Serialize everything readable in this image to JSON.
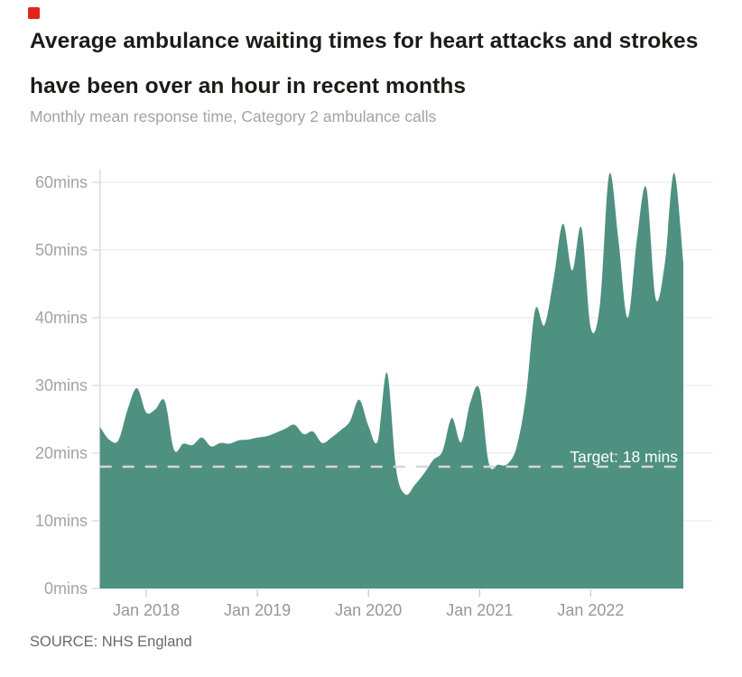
{
  "brand": {
    "logo_color": "#e0241c"
  },
  "header": {
    "title_lines": [
      "Average ambulance waiting times for heart attacks and strokes",
      "have been over an hour in recent months"
    ],
    "subtitle": "Monthly mean response time, Category 2 ambulance calls"
  },
  "footer": {
    "source": "SOURCE: NHS England"
  },
  "chart_data": {
    "type": "area",
    "title": "Average ambulance waiting times for heart attacks and strokes have been over an hour in recent months",
    "subtitle": "Monthly mean response time, Category 2 ambulance calls",
    "source": "SOURCE: NHS England",
    "unit": "minutes",
    "grid": true,
    "legend": "none",
    "area_color": "#4f9180",
    "grid_color": "#ececec",
    "axis_color": "#d9d9d9",
    "target": {
      "value": 18,
      "label": "Target: 18 mins",
      "line_color": "#d6d6d3"
    },
    "ylim": [
      0,
      65
    ],
    "y_tick_values": [
      0,
      10,
      20,
      30,
      40,
      50,
      60
    ],
    "y_tick_labels": [
      "0mins",
      "10mins",
      "20mins",
      "30mins",
      "40mins",
      "50mins",
      "60mins"
    ],
    "x_tick_labels": [
      "Jan 2018",
      "Jan 2019",
      "Jan 2020",
      "Jan 2021",
      "Jan 2022"
    ],
    "series": [
      {
        "name": "Mean Category 2 response time",
        "months": [
          "Aug 2017",
          "Sep 2017",
          "Oct 2017",
          "Nov 2017",
          "Dec 2017",
          "Jan 2018",
          "Feb 2018",
          "Mar 2018",
          "Apr 2018",
          "May 2018",
          "Jun 2018",
          "Jul 2018",
          "Aug 2018",
          "Sep 2018",
          "Oct 2018",
          "Nov 2018",
          "Dec 2018",
          "Jan 2019",
          "Feb 2019",
          "Mar 2019",
          "Apr 2019",
          "May 2019",
          "Jun 2019",
          "Jul 2019",
          "Aug 2019",
          "Sep 2019",
          "Oct 2019",
          "Nov 2019",
          "Dec 2019",
          "Jan 2020",
          "Feb 2020",
          "Mar 2020",
          "Apr 2020",
          "May 2020",
          "Jun 2020",
          "Jul 2020",
          "Aug 2020",
          "Sep 2020",
          "Oct 2020",
          "Nov 2020",
          "Dec 2020",
          "Jan 2021",
          "Feb 2021",
          "Mar 2021",
          "Apr 2021",
          "May 2021",
          "Jun 2021",
          "Jul 2021",
          "Aug 2021",
          "Sep 2021",
          "Oct 2021",
          "Nov 2021",
          "Dec 2021",
          "Jan 2022",
          "Feb 2022",
          "Mar 2022",
          "Apr 2022",
          "May 2022",
          "Jun 2022",
          "Jul 2022",
          "Aug 2022",
          "Sep 2022",
          "Oct 2022",
          "Nov 2022"
        ],
        "values": [
          23.9,
          22.0,
          21.9,
          26.5,
          29.6,
          26.0,
          26.5,
          27.7,
          20.5,
          21.4,
          21.2,
          22.3,
          21.0,
          21.5,
          21.4,
          21.9,
          22.0,
          22.3,
          22.5,
          23.0,
          23.6,
          24.2,
          22.8,
          23.2,
          21.5,
          22.3,
          23.4,
          24.7,
          27.9,
          24.0,
          21.8,
          31.9,
          17.5,
          13.9,
          15.3,
          17.0,
          19.0,
          20.3,
          25.2,
          21.6,
          27.5,
          29.4,
          18.5,
          18.3,
          18.4,
          20.9,
          28.4,
          41.2,
          38.9,
          45.8,
          53.9,
          47.0,
          53.3,
          38.5,
          42.0,
          61.2,
          51.4,
          40.0,
          51.7,
          59.2,
          42.9,
          48.0,
          61.4,
          48.1
        ]
      }
    ]
  }
}
